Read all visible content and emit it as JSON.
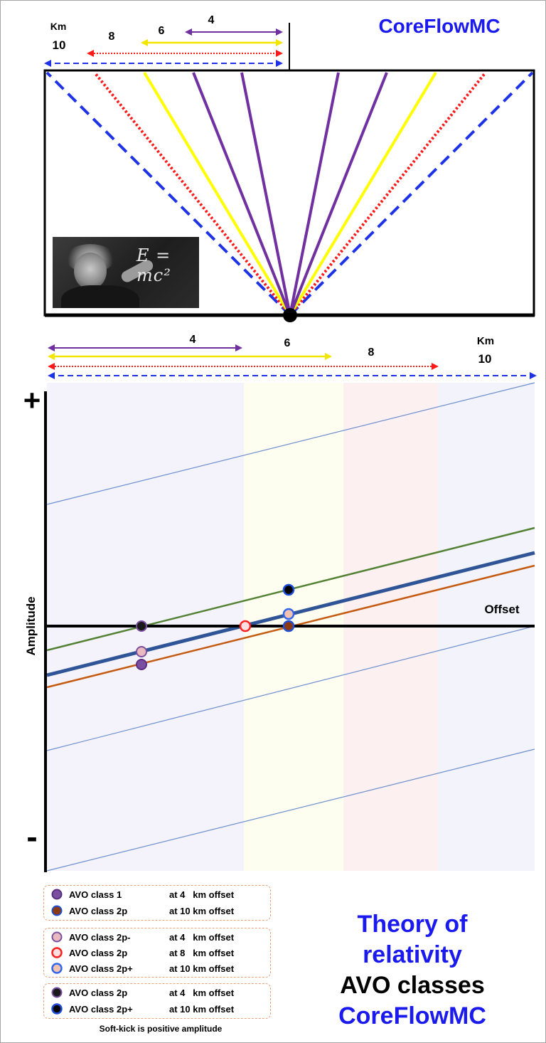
{
  "brand": "CoreFlowMC",
  "top_scale": {
    "unit": "Km",
    "distances": [
      "10",
      "8",
      "6",
      "4"
    ]
  },
  "photo": {
    "formula": "E = mc²"
  },
  "bottom_scale": {
    "unit": "Km",
    "distances": [
      "4",
      "6",
      "8",
      "10"
    ]
  },
  "chart": {
    "plus_sign": "+",
    "minus_sign": "-",
    "ylabel": "Amplitude",
    "xlabel": "Offset"
  },
  "legend": {
    "groups": [
      {
        "items": [
          {
            "label": "AVO class 1",
            "offset": "at 4   km offset",
            "fill": "#7a4fa0",
            "stroke": "#5a2d82"
          },
          {
            "label": "AVO class 2p",
            "offset": "at 10 km offset",
            "fill": "#8b3a12",
            "stroke": "#1f4ed8"
          }
        ]
      },
      {
        "items": [
          {
            "label": "AVO class 2p-",
            "offset": "at 4   km offset",
            "fill": "#e9b9c0",
            "stroke": "#7a4fa0"
          },
          {
            "label": "AVO class 2p",
            "offset": "at 8   km offset",
            "fill": "#ffe0e0",
            "stroke": "#ff2020"
          },
          {
            "label": "AVO class 2p+",
            "offset": "at 10 km offset",
            "fill": "#f1c2b0",
            "stroke": "#3366ee"
          }
        ]
      },
      {
        "items": [
          {
            "label": "AVO class 2p",
            "offset": "at 4   km offset",
            "fill": "#1a1a1a",
            "stroke": "#7a4fa0"
          },
          {
            "label": "AVO class 2p+",
            "offset": "at 10 km offset",
            "fill": "#000000",
            "stroke": "#1f4ed8"
          }
        ]
      }
    ],
    "note": "Soft-kick is positive amplitude"
  },
  "title": {
    "line1": "Theory of",
    "line2": "relativity",
    "line3": "AVO classes",
    "line4": "CoreFlowMC"
  },
  "colors": {
    "brand_blue": "#1a1aee",
    "ray_10km": "#1f33e6",
    "ray_8km": "#ff1a1a",
    "ray_6km": "#ffff00",
    "ray_4km": "#7030a0",
    "line_class1": "#548235",
    "line_class2": "#2f5597",
    "line_class3": "#c55a11",
    "guide_line": "#6e8fd0"
  }
}
